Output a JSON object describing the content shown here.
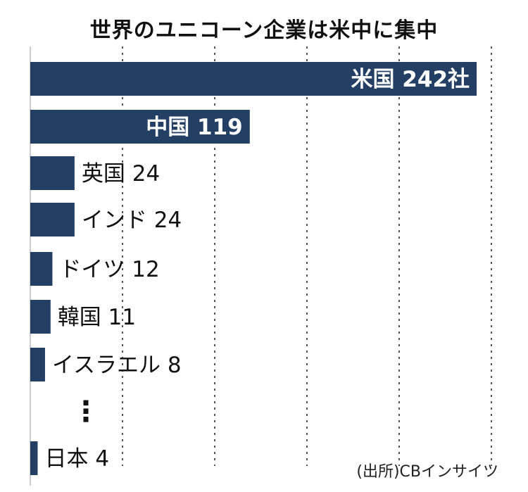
{
  "title": "世界のユニコーン企業は米中に集中",
  "source": "(出所)CBインサイツ",
  "ellipsis": "⋮",
  "colors": {
    "bar": "#233f63",
    "label_inside": "#ffffff",
    "label_outside": "#111111",
    "grid": "#555555"
  },
  "chart_data": {
    "type": "bar",
    "orientation": "horizontal",
    "title": "世界のユニコーン企業は米中に集中",
    "unit": "社",
    "xlim": [
      0,
      250
    ],
    "categories": [
      "米国",
      "中国",
      "英国",
      "インド",
      "ドイツ",
      "韓国",
      "イスラエル",
      "日本"
    ],
    "values": [
      242,
      119,
      24,
      24,
      12,
      11,
      8,
      4
    ],
    "labels": [
      "米国 242社",
      "中国 119",
      "英国 24",
      "インド 24",
      "ドイツ 12",
      "韓国 11",
      "イスラエル 8",
      "日本 4"
    ],
    "label_inside": [
      true,
      true,
      false,
      false,
      false,
      false,
      false,
      false
    ],
    "gridlines": "dotted vertical",
    "omitted_rows_marker_after": "イスラエル"
  }
}
